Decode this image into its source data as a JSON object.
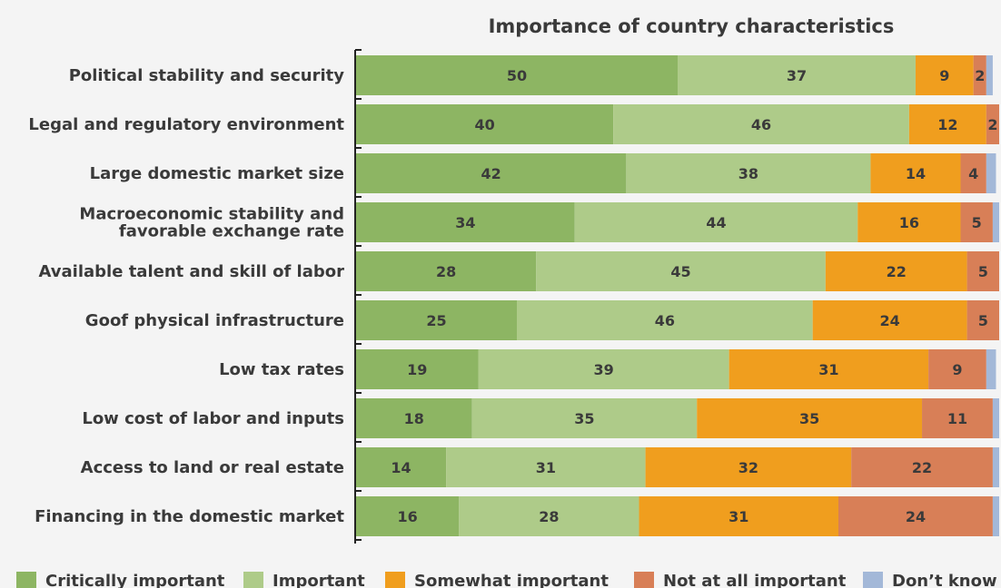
{
  "chart_data": {
    "type": "bar",
    "orientation": "horizontal",
    "stacked": true,
    "title": "Importance of country characteristics",
    "xlabel": "",
    "ylabel": "",
    "xlim": [
      0,
      100
    ],
    "grid": false,
    "legend_position": "bottom",
    "categories": [
      "Political stability and security",
      "Legal and regulatory environment",
      "Large domestic market size",
      "Macroeconomic stability and favorable exchange rate",
      "Available talent and skill of labor",
      "Goof physical infrastructure",
      "Low tax rates",
      "Low cost of labor and inputs",
      "Access to land or real estate",
      "Financing in the domestic market"
    ],
    "category_label_lines": [
      [
        "Political stability and security"
      ],
      [
        "Legal and regulatory environment"
      ],
      [
        "Large domestic market size"
      ],
      [
        "Macroeconomic stability and",
        "favorable exchange rate"
      ],
      [
        "Available talent and skill of labor"
      ],
      [
        "Goof physical infrastructure"
      ],
      [
        "Low tax rates"
      ],
      [
        "Low cost of labor and inputs"
      ],
      [
        "Access to land or real estate"
      ],
      [
        "Financing in the domestic market"
      ]
    ],
    "series": [
      {
        "name": "Critically important",
        "color": "#8db563",
        "values": [
          50,
          40,
          42,
          34,
          28,
          25,
          19,
          18,
          14,
          16
        ]
      },
      {
        "name": "Important",
        "color": "#aecb89",
        "values": [
          37,
          46,
          38,
          44,
          45,
          46,
          39,
          35,
          31,
          28
        ]
      },
      {
        "name": "Somewhat important",
        "color": "#f09e1e",
        "values": [
          9,
          12,
          14,
          16,
          22,
          24,
          31,
          35,
          32,
          31
        ]
      },
      {
        "name": "Not at all important",
        "color": "#d87f57",
        "values": [
          2,
          2,
          4,
          5,
          5,
          5,
          9,
          11,
          22,
          24
        ]
      },
      {
        "name": "Don’t know",
        "color": "#a3b8d8",
        "values": [
          1,
          1,
          1.5,
          1,
          1,
          0.5,
          1.5,
          1,
          2,
          2
        ]
      }
    ],
    "show_value_labels": [
      true,
      true,
      true,
      true,
      false
    ]
  }
}
